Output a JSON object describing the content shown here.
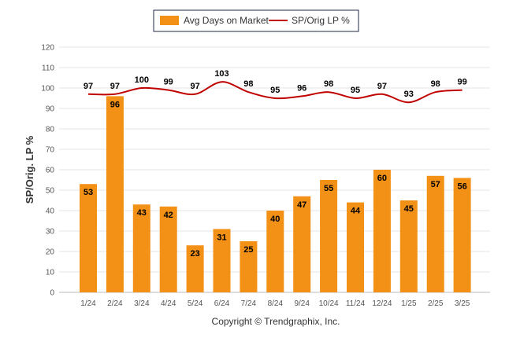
{
  "chart_data": {
    "type": "bar",
    "categories": [
      "1/24",
      "2/24",
      "3/24",
      "4/24",
      "5/24",
      "6/24",
      "7/24",
      "8/24",
      "9/24",
      "10/24",
      "11/24",
      "12/24",
      "1/25",
      "2/25",
      "3/25"
    ],
    "series": [
      {
        "name": "Avg Days on Market",
        "type": "bar",
        "color": "#F39016",
        "values": [
          53,
          96,
          43,
          42,
          23,
          31,
          25,
          40,
          47,
          55,
          44,
          60,
          45,
          57,
          56
        ]
      },
      {
        "name": "SP/Orig LP %",
        "type": "line",
        "color": "#C00000",
        "values": [
          97,
          97,
          100,
          99,
          97,
          103,
          98,
          95,
          96,
          98,
          95,
          97,
          93,
          98,
          99
        ]
      }
    ],
    "ylabel": "SP/Orig. LP %",
    "ylim": [
      0,
      120
    ],
    "yticks": [
      0,
      10,
      20,
      30,
      40,
      50,
      60,
      70,
      80,
      90,
      100,
      110,
      120
    ],
    "grid": true,
    "legend_position": "top-center"
  },
  "footer": "Copyright © Trendgraphix, Inc."
}
